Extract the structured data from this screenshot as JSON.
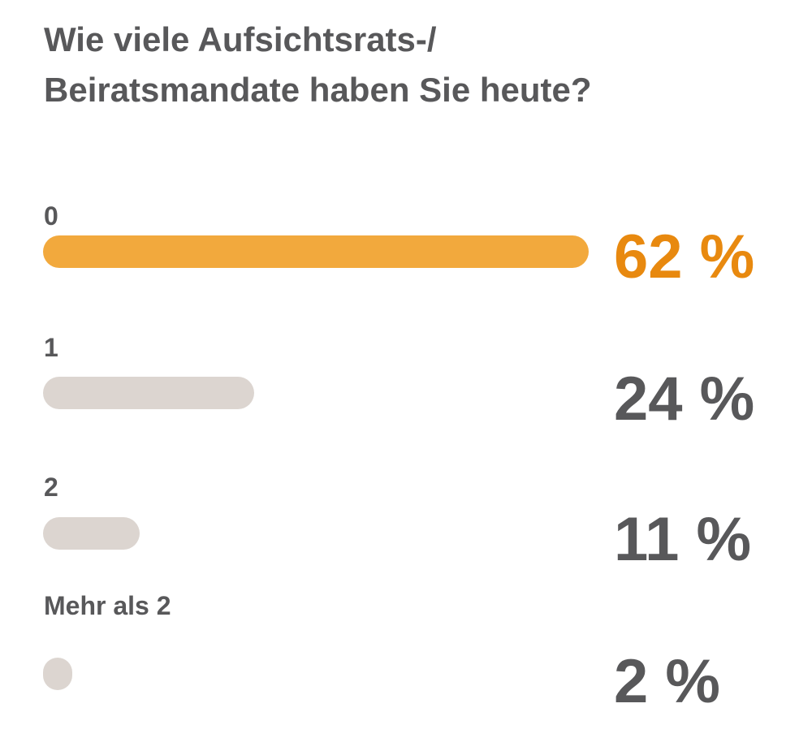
{
  "chart_data": {
    "type": "bar",
    "orientation": "horizontal",
    "title": "Wie viele Aufsichtsrats-/ Beiratsmandate haben Sie heute?",
    "title_lines": [
      "Wie viele Aufsichtsrats-/",
      "Beiratsmandate haben Sie heute?"
    ],
    "categories": [
      "0",
      "1",
      "2",
      "Mehr als 2"
    ],
    "values": [
      62,
      24,
      11,
      2
    ],
    "value_labels": [
      "62 %",
      "24 %",
      "11 %",
      "2 %"
    ],
    "unit": "%",
    "xlim": [
      0,
      62
    ],
    "highlight_index": 0,
    "colors": {
      "highlight_bar": "#f2a93d",
      "highlight_text": "#e8890f",
      "bar": "#dcd5d0",
      "text": "#58585a"
    }
  }
}
